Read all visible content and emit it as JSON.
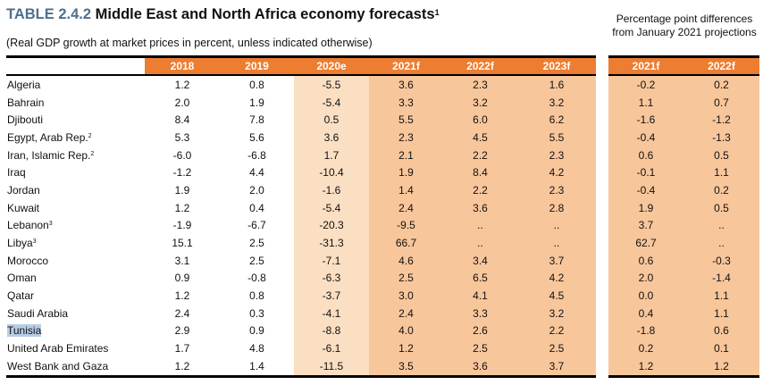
{
  "title": {
    "number": "TABLE 2.4.2",
    "text": "Middle East and North Africa economy forecasts",
    "footnote": "1"
  },
  "subtitle": "(Real GDP growth at market prices in percent, unless indicated otherwise)",
  "diff_header": "Percentage point differences from January 2021 projections",
  "colors": {
    "header": "#ed7d31",
    "estimate_col": "#fbdfc3",
    "forecast_col": "#f8c69b",
    "title_number": "#4d6f8f",
    "selection": "#b7cde6"
  },
  "columns": [
    "2018",
    "2019",
    "2020e",
    "2021f",
    "2022f",
    "2023f"
  ],
  "diff_columns": [
    "2021f",
    "2022f"
  ],
  "rows": [
    {
      "country": "Algeria",
      "sup": "",
      "v": [
        "1.2",
        "0.8",
        "-5.5",
        "3.6",
        "2.3",
        "1.6"
      ],
      "d": [
        "-0.2",
        "0.2"
      ]
    },
    {
      "country": "Bahrain",
      "sup": "",
      "v": [
        "2.0",
        "1.9",
        "-5.4",
        "3.3",
        "3.2",
        "3.2"
      ],
      "d": [
        "1.1",
        "0.7"
      ]
    },
    {
      "country": "Djibouti",
      "sup": "",
      "v": [
        "8.4",
        "7.8",
        "0.5",
        "5.5",
        "6.0",
        "6.2"
      ],
      "d": [
        "-1.6",
        "-1.2"
      ]
    },
    {
      "country": "Egypt, Arab Rep.",
      "sup": "2",
      "v": [
        "5.3",
        "5.6",
        "3.6",
        "2.3",
        "4.5",
        "5.5"
      ],
      "d": [
        "-0.4",
        "-1.3"
      ]
    },
    {
      "country": "Iran, Islamic Rep.",
      "sup": "2",
      "v": [
        "-6.0",
        "-6.8",
        "1.7",
        "2.1",
        "2.2",
        "2.3"
      ],
      "d": [
        "0.6",
        "0.5"
      ]
    },
    {
      "country": "Iraq",
      "sup": "",
      "v": [
        "-1.2",
        "4.4",
        "-10.4",
        "1.9",
        "8.4",
        "4.2"
      ],
      "d": [
        "-0.1",
        "1.1"
      ]
    },
    {
      "country": "Jordan",
      "sup": "",
      "v": [
        "1.9",
        "2.0",
        "-1.6",
        "1.4",
        "2.2",
        "2.3"
      ],
      "d": [
        "-0.4",
        "0.2"
      ]
    },
    {
      "country": "Kuwait",
      "sup": "",
      "v": [
        "1.2",
        "0.4",
        "-5.4",
        "2.4",
        "3.6",
        "2.8"
      ],
      "d": [
        "1.9",
        "0.5"
      ]
    },
    {
      "country": "Lebanon",
      "sup": "3",
      "v": [
        "-1.9",
        "-6.7",
        "-20.3",
        "-9.5",
        "..",
        ".."
      ],
      "d": [
        "3.7",
        ".."
      ]
    },
    {
      "country": "Libya",
      "sup": "3",
      "v": [
        "15.1",
        "2.5",
        "-31.3",
        "66.7",
        "..",
        ".."
      ],
      "d": [
        "62.7",
        ".."
      ]
    },
    {
      "country": "Morocco",
      "sup": "",
      "v": [
        "3.1",
        "2.5",
        "-7.1",
        "4.6",
        "3.4",
        "3.7"
      ],
      "d": [
        "0.6",
        "-0.3"
      ]
    },
    {
      "country": "Oman",
      "sup": "",
      "v": [
        "0.9",
        "-0.8",
        "-6.3",
        "2.5",
        "6.5",
        "4.2"
      ],
      "d": [
        "2.0",
        "-1.4"
      ]
    },
    {
      "country": "Qatar",
      "sup": "",
      "v": [
        "1.2",
        "0.8",
        "-3.7",
        "3.0",
        "4.1",
        "4.5"
      ],
      "d": [
        "0.0",
        "1.1"
      ]
    },
    {
      "country": "Saudi Arabia",
      "sup": "",
      "v": [
        "2.4",
        "0.3",
        "-4.1",
        "2.4",
        "3.3",
        "3.2"
      ],
      "d": [
        "0.4",
        "1.1"
      ]
    },
    {
      "country": "Tunisia",
      "sup": "",
      "selected": true,
      "v": [
        "2.9",
        "0.9",
        "-8.8",
        "4.0",
        "2.6",
        "2.2"
      ],
      "d": [
        "-1.8",
        "0.6"
      ]
    },
    {
      "country": "United Arab Emirates",
      "sup": "",
      "v": [
        "1.7",
        "4.8",
        "-6.1",
        "1.2",
        "2.5",
        "2.5"
      ],
      "d": [
        "0.2",
        "0.1"
      ]
    },
    {
      "country": "West Bank and Gaza",
      "sup": "",
      "v": [
        "1.2",
        "1.4",
        "-11.5",
        "3.5",
        "3.6",
        "3.7"
      ],
      "d": [
        "1.2",
        "1.2"
      ]
    }
  ]
}
